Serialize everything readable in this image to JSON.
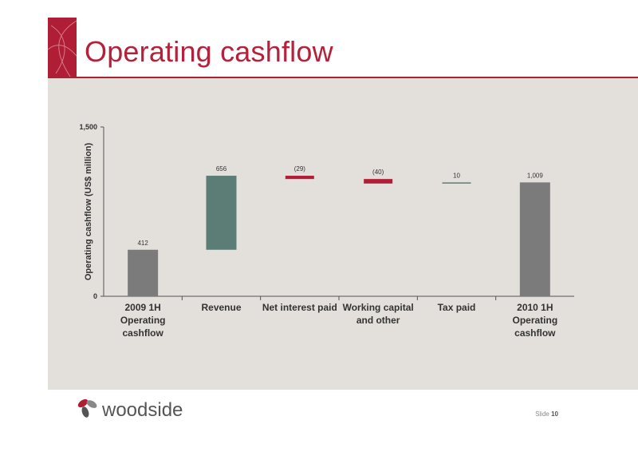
{
  "slide": {
    "title": "Operating cashflow",
    "slide_label": "Slide",
    "slide_number": "10",
    "brand": "woodside"
  },
  "colors": {
    "accent": "#b01e35",
    "panel": "#e3dfdb",
    "bar_total": "#7b7b7b",
    "bar_increase": "#5c7d76",
    "bar_decrease": "#b01e35"
  },
  "chart_data": {
    "type": "bar",
    "subtype": "waterfall",
    "ylabel": "Operating cashflow (US$ million)",
    "ylim": [
      0,
      1500
    ],
    "yticks": [
      "0",
      "1,500"
    ],
    "grid": false,
    "categories": [
      "2009 1H\nOperating\ncashflow",
      "Revenue",
      "Net interest paid",
      "Working capital\nand other",
      "Tax paid",
      "2010 1H\nOperating\ncashflow"
    ],
    "bars": [
      {
        "kind": "total",
        "start": 0,
        "end": 412,
        "label": "412"
      },
      {
        "kind": "increase",
        "start": 412,
        "end": 1068,
        "label": "656"
      },
      {
        "kind": "decrease",
        "start": 1068,
        "end": 1039,
        "label": "(29)"
      },
      {
        "kind": "decrease",
        "start": 1039,
        "end": 999,
        "label": "(40)"
      },
      {
        "kind": "increase",
        "start": 999,
        "end": 1009,
        "label": "10"
      },
      {
        "kind": "total",
        "start": 0,
        "end": 1009,
        "label": "1,009"
      }
    ]
  }
}
